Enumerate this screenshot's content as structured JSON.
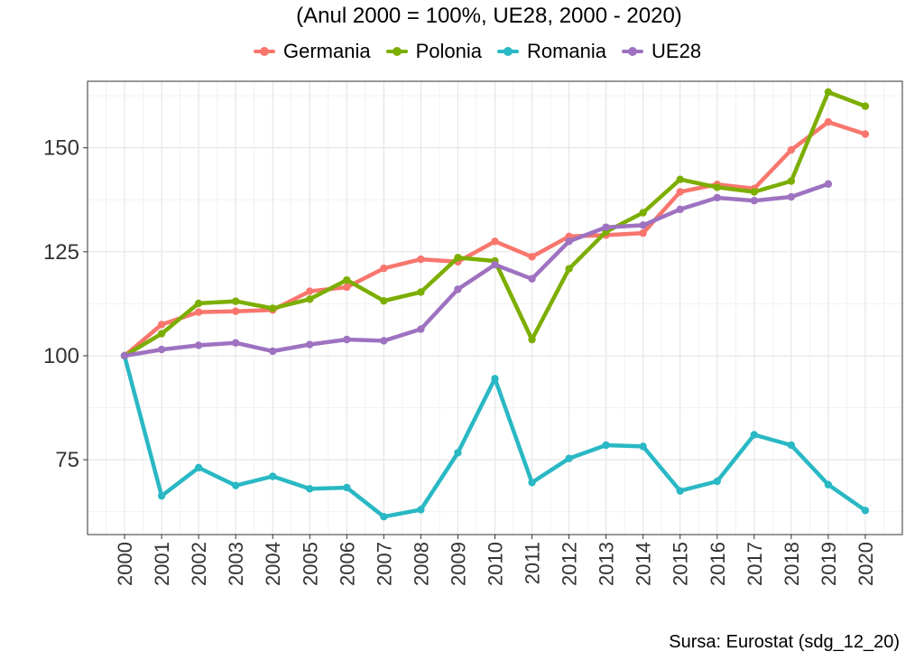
{
  "chart_data": {
    "type": "line",
    "title": "(Anul 2000 = 100%, UE28, 2000 - 2020)",
    "source": "Sursa: Eurostat (sdg_12_20)",
    "x": [
      "2000",
      "2001",
      "2002",
      "2003",
      "2004",
      "2005",
      "2006",
      "2007",
      "2008",
      "2009",
      "2010",
      "2011",
      "2012",
      "2013",
      "2014",
      "2015",
      "2016",
      "2017",
      "2018",
      "2019",
      "2020"
    ],
    "ylim": [
      57,
      166
    ],
    "yticks": [
      75,
      100,
      125,
      150
    ],
    "grid": true,
    "legend_position": "top",
    "series": [
      {
        "name": "Germania",
        "color": "#F8766D",
        "values": [
          100,
          107.5,
          110.5,
          110.7,
          111,
          115.5,
          116.5,
          121,
          123.2,
          122.6,
          127.5,
          123.8,
          128.7,
          129,
          129.5,
          139.4,
          141.2,
          140.2,
          149.5,
          156.2,
          153.3
        ]
      },
      {
        "name": "Polonia",
        "color": "#7CAE00",
        "values": [
          100,
          105.3,
          112.6,
          113.1,
          111.4,
          113.6,
          118.2,
          113.2,
          115.3,
          123.6,
          122.8,
          103.9,
          120.9,
          129.8,
          134.4,
          142.4,
          140.5,
          139.4,
          142,
          163.4,
          160
        ]
      },
      {
        "name": "Romania",
        "color": "#29B8C4",
        "values": [
          100,
          66.3,
          73.1,
          68.8,
          71,
          68,
          68.3,
          61.3,
          63,
          76.7,
          94.5,
          69.5,
          75.3,
          78.5,
          78.2,
          67.5,
          69.8,
          81,
          78.5,
          69,
          62.8
        ]
      },
      {
        "name": "UE28",
        "color": "#9E72C0",
        "values": [
          100,
          101.5,
          102.5,
          103.1,
          101.1,
          102.7,
          103.9,
          103.6,
          106.4,
          116,
          121.9,
          118.5,
          127.5,
          130.9,
          131.4,
          135.2,
          138,
          137.3,
          138.2,
          141.3,
          null
        ]
      }
    ]
  }
}
